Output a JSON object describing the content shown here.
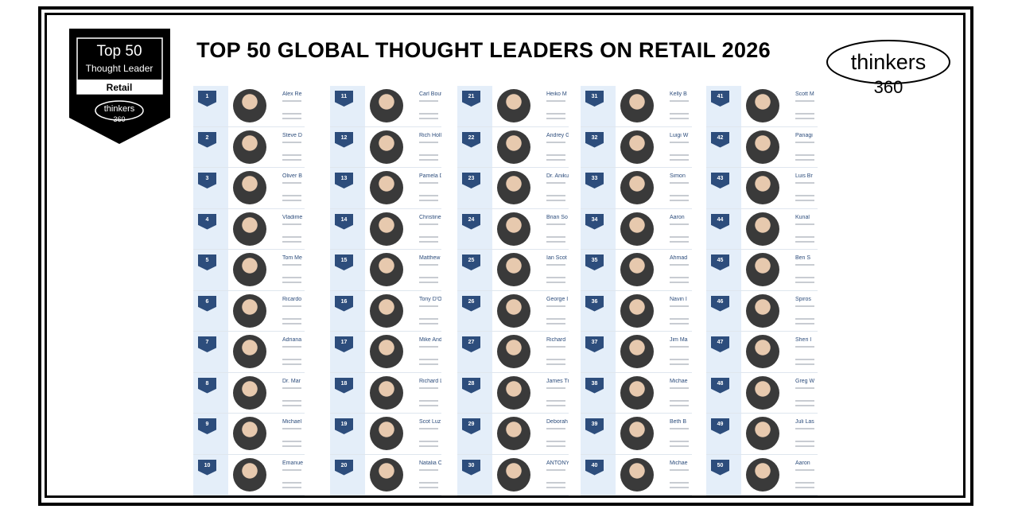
{
  "title": "TOP 50 GLOBAL THOUGHT LEADERS ON RETAIL  2026",
  "badge": {
    "heading": "Top 50",
    "subheading": "Thought Leader",
    "category": "Retail",
    "brand": "thinkers",
    "brand_number": "360"
  },
  "logo": {
    "brand": "thinkers",
    "number": "360"
  },
  "leaders": [
    {
      "rank": "1",
      "name": "Alex Re"
    },
    {
      "rank": "2",
      "name": "Steve D"
    },
    {
      "rank": "3",
      "name": "Oliver B"
    },
    {
      "rank": "4",
      "name": "Vladime"
    },
    {
      "rank": "5",
      "name": "Tom Me"
    },
    {
      "rank": "6",
      "name": "Ricardo"
    },
    {
      "rank": "7",
      "name": "Adriana"
    },
    {
      "rank": "8",
      "name": "Dr. Mar"
    },
    {
      "rank": "9",
      "name": "Michael"
    },
    {
      "rank": "10",
      "name": "Emanue"
    },
    {
      "rank": "11",
      "name": "Carl Bout"
    },
    {
      "rank": "12",
      "name": "Rich Holla"
    },
    {
      "rank": "13",
      "name": "Pamela D"
    },
    {
      "rank": "14",
      "name": "Christine"
    },
    {
      "rank": "15",
      "name": "Matthew"
    },
    {
      "rank": "16",
      "name": "Tony D'O"
    },
    {
      "rank": "17",
      "name": "Mike Andr"
    },
    {
      "rank": "18",
      "name": "Richard L"
    },
    {
      "rank": "19",
      "name": "Scot Luz"
    },
    {
      "rank": "20",
      "name": "Natalia O"
    },
    {
      "rank": "21",
      "name": "Heiko M"
    },
    {
      "rank": "22",
      "name": "Andrey G"
    },
    {
      "rank": "23",
      "name": "Dr. Aniku"
    },
    {
      "rank": "24",
      "name": "Brian So"
    },
    {
      "rank": "25",
      "name": "Ian Scot"
    },
    {
      "rank": "26",
      "name": "George I"
    },
    {
      "rank": "27",
      "name": "Richard"
    },
    {
      "rank": "28",
      "name": "James Tr"
    },
    {
      "rank": "29",
      "name": "Deborah"
    },
    {
      "rank": "30",
      "name": "ANTONY"
    },
    {
      "rank": "31",
      "name": "Kelly B"
    },
    {
      "rank": "32",
      "name": "Luigi W"
    },
    {
      "rank": "33",
      "name": "Simon"
    },
    {
      "rank": "34",
      "name": "Aaron"
    },
    {
      "rank": "35",
      "name": "Ahmad"
    },
    {
      "rank": "36",
      "name": "Navin I"
    },
    {
      "rank": "37",
      "name": "Jim Ma"
    },
    {
      "rank": "38",
      "name": "Michae"
    },
    {
      "rank": "39",
      "name": "Beth B"
    },
    {
      "rank": "40",
      "name": "Michae"
    },
    {
      "rank": "41",
      "name": "Scott M"
    },
    {
      "rank": "42",
      "name": "Panagi"
    },
    {
      "rank": "43",
      "name": "Luis Br"
    },
    {
      "rank": "44",
      "name": "Kunal"
    },
    {
      "rank": "45",
      "name": "Ben S"
    },
    {
      "rank": "46",
      "name": "Spiros"
    },
    {
      "rank": "47",
      "name": "Sheri I"
    },
    {
      "rank": "48",
      "name": "Greg W"
    },
    {
      "rank": "49",
      "name": "Juli Las"
    },
    {
      "rank": "50",
      "name": "Aaron"
    }
  ]
}
